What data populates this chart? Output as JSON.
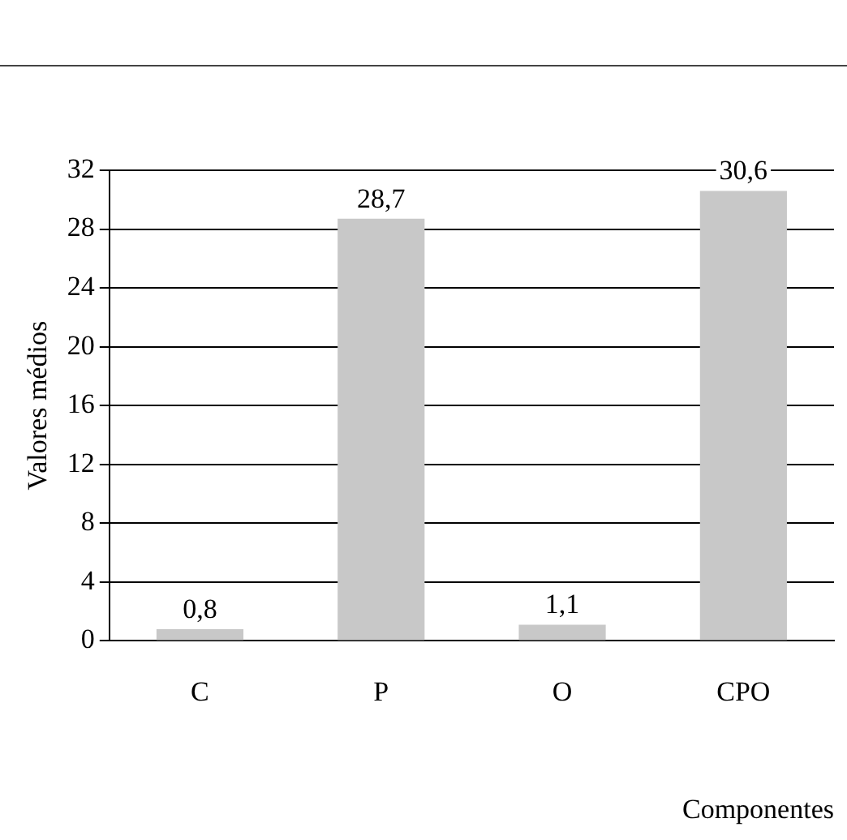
{
  "chart_data": {
    "type": "bar",
    "xlabel": "Componentes",
    "ylabel": "Valores médios",
    "categories": [
      "C",
      "P",
      "O",
      "CPO"
    ],
    "values": [
      0.8,
      28.7,
      1.1,
      30.6
    ],
    "color": "#c8c8c8",
    "ylim": [
      0,
      32
    ],
    "yticks": [
      0,
      4,
      8,
      12,
      16,
      20,
      24,
      28,
      32
    ],
    "value_labels": [
      "0,8",
      "28,7",
      "1,1",
      "30,6"
    ],
    "grid": "y"
  }
}
